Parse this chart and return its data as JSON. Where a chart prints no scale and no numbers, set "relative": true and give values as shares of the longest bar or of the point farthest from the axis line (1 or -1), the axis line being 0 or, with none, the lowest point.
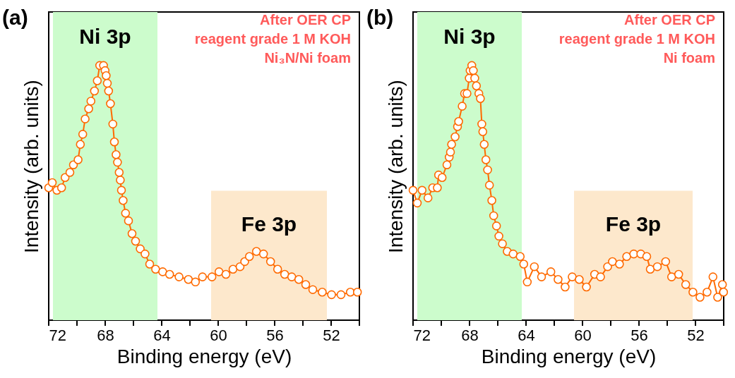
{
  "chart_data": [
    {
      "type": "line",
      "title": "(a)",
      "xlabel": "Binding energy (eV)",
      "ylabel": "Intensity (arb. units)",
      "relative": true,
      "tick_labels": "x",
      "marker": "circle",
      "xlim": [
        72,
        50
      ],
      "xticks": [
        72,
        {
          "value": 70,
          "label": null
        },
        68,
        {
          "value": 66,
          "label": null
        },
        64,
        {
          "value": 62,
          "label": null
        },
        60,
        {
          "value": 58,
          "label": null
        },
        56,
        {
          "value": 54,
          "label": null
        },
        52,
        {
          "value": 50,
          "label": null
        }
      ],
      "bands": [
        {
          "axis": "x",
          "from": 71.7,
          "to": 64.3,
          "label": "Ni 3p",
          "color": "#ccfccc"
        },
        {
          "axis": "x",
          "from": 60.5,
          "to": 52.3,
          "label": "Fe 3p",
          "color": "#fde8cc"
        }
      ],
      "annotations": [
        "After OER CP",
        "reagent grade 1 M KOH",
        "Ni₃N/Ni foam"
      ],
      "x": [
        72.0,
        71.75,
        71.42,
        71.09,
        70.84,
        70.5,
        70.25,
        69.92,
        69.76,
        69.59,
        69.42,
        69.17,
        69.01,
        68.76,
        68.56,
        68.39,
        68.12,
        68.01,
        67.93,
        67.85,
        67.76,
        67.63,
        67.46,
        67.35,
        67.23,
        67.13,
        67.01,
        66.93,
        66.85,
        66.73,
        66.56,
        66.35,
        66.1,
        65.85,
        65.52,
        65.18,
        64.85,
        64.43,
        63.93,
        63.44,
        62.77,
        62.11,
        61.61,
        61.11,
        60.44,
        59.94,
        59.45,
        58.95,
        58.45,
        58.12,
        57.79,
        57.29,
        56.79,
        56.29,
        55.79,
        55.29,
        54.79,
        54.29,
        53.8,
        53.3,
        52.63,
        51.97,
        51.3,
        50.64,
        50.14
      ],
      "series": [
        {
          "color": "#ff6a00",
          "values": [
            0.52,
            0.54,
            0.51,
            0.52,
            0.56,
            0.58,
            0.61,
            0.63,
            0.69,
            0.73,
            0.79,
            0.83,
            0.86,
            0.9,
            0.94,
            1.0,
            1.0,
            0.98,
            0.96,
            0.93,
            0.9,
            0.85,
            0.77,
            0.7,
            0.65,
            0.62,
            0.58,
            0.55,
            0.51,
            0.47,
            0.42,
            0.39,
            0.34,
            0.31,
            0.28,
            0.26,
            0.22,
            0.2,
            0.19,
            0.18,
            0.17,
            0.16,
            0.15,
            0.17,
            0.17,
            0.19,
            0.18,
            0.2,
            0.21,
            0.23,
            0.25,
            0.27,
            0.26,
            0.23,
            0.2,
            0.18,
            0.17,
            0.16,
            0.14,
            0.12,
            0.11,
            0.1,
            0.1,
            0.11,
            0.11
          ]
        }
      ]
    },
    {
      "type": "line",
      "title": "(b)",
      "xlabel": "Binding energy (eV)",
      "ylabel": "Intensity (arb. units)",
      "relative": true,
      "tick_labels": "x",
      "marker": "circle",
      "xlim": [
        72,
        50
      ],
      "xticks": [
        72,
        {
          "value": 70,
          "label": null
        },
        68,
        {
          "value": 66,
          "label": null
        },
        64,
        {
          "value": 62,
          "label": null
        },
        60,
        {
          "value": 58,
          "label": null
        },
        56,
        {
          "value": 54,
          "label": null
        },
        52,
        {
          "value": 50,
          "label": null
        }
      ],
      "bands": [
        {
          "axis": "x",
          "from": 71.7,
          "to": 64.3,
          "label": "Ni 3p",
          "color": "#ccfccc"
        },
        {
          "axis": "x",
          "from": 60.6,
          "to": 52.2,
          "label": "Fe 3p",
          "color": "#fde8cc"
        }
      ],
      "annotations": [
        "After OER CP",
        "reagent grade 1 M KOH",
        "Ni foam"
      ],
      "x": [
        72.0,
        71.7,
        71.36,
        70.94,
        70.61,
        70.28,
        70.19,
        69.94,
        69.6,
        69.44,
        69.35,
        69.27,
        69.02,
        68.85,
        68.77,
        68.52,
        68.35,
        68.18,
        68.02,
        67.96,
        67.84,
        67.73,
        67.63,
        67.51,
        67.34,
        67.23,
        67.13,
        67.06,
        66.96,
        66.84,
        66.72,
        66.59,
        66.42,
        66.29,
        66.09,
        65.92,
        65.67,
        65.33,
        64.91,
        64.41,
        64.16,
        63.91,
        63.41,
        62.9,
        62.24,
        61.73,
        61.23,
        60.73,
        60.23,
        59.72,
        59.14,
        58.72,
        58.22,
        57.88,
        57.38,
        56.87,
        56.37,
        55.87,
        55.45,
        55.2,
        54.7,
        54.11,
        53.69,
        53.19,
        52.69,
        52.18,
        51.68,
        51.18,
        50.76,
        50.43,
        50.09,
        50.01
      ],
      "series": [
        {
          "color": "#ff6a00",
          "values": [
            0.51,
            0.46,
            0.51,
            0.48,
            0.52,
            0.52,
            0.57,
            0.56,
            0.61,
            0.64,
            0.66,
            0.69,
            0.72,
            0.76,
            0.78,
            0.84,
            0.89,
            0.89,
            0.95,
            0.98,
            1.0,
            0.98,
            0.95,
            0.92,
            0.89,
            0.87,
            0.77,
            0.74,
            0.69,
            0.63,
            0.59,
            0.53,
            0.47,
            0.41,
            0.37,
            0.33,
            0.3,
            0.27,
            0.26,
            0.25,
            0.22,
            0.15,
            0.21,
            0.17,
            0.19,
            0.16,
            0.13,
            0.17,
            0.16,
            0.13,
            0.18,
            0.17,
            0.21,
            0.23,
            0.22,
            0.25,
            0.26,
            0.26,
            0.25,
            0.2,
            0.21,
            0.23,
            0.17,
            0.18,
            0.14,
            0.11,
            0.09,
            0.11,
            0.17,
            0.09,
            0.14,
            0.11
          ]
        }
      ]
    }
  ]
}
